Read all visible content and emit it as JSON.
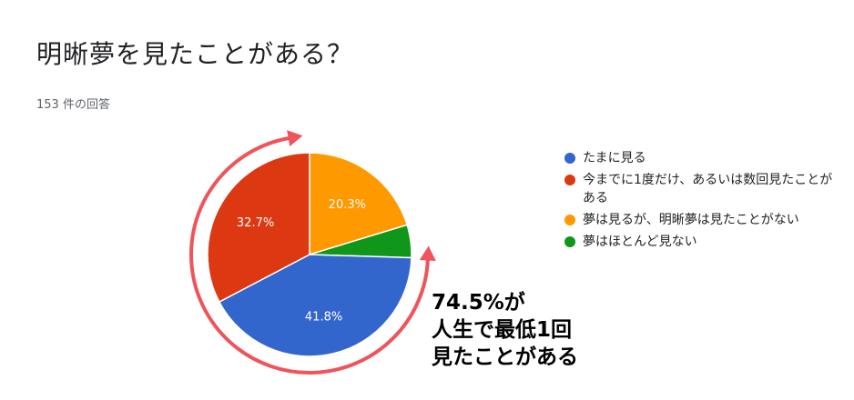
{
  "title": "明晰夢を見たことがある？",
  "response_count": "153 件の回答",
  "chart_data": {
    "type": "pie",
    "title": "明晰夢を見たことがある？",
    "slices": [
      {
        "label": "たまに見る",
        "value": 41.8,
        "display": "41.8%",
        "color": "#3366cc"
      },
      {
        "label": "今までに1度だけ、あるいは数回見たことがある",
        "value": 32.7,
        "display": "32.7%",
        "color": "#dc3912"
      },
      {
        "label": "夢は見るが、明晰夢は見たことがない",
        "value": 20.3,
        "display": "20.3%",
        "color": "#ff9900"
      },
      {
        "label": "夢はほとんど見ない",
        "value": 5.2,
        "display": "",
        "color": "#109618"
      }
    ],
    "legend_position": "right"
  },
  "annotation": {
    "lines": [
      "74.5%が",
      "人生で最低1回",
      "見たことがある"
    ],
    "arrow_color": "#f0535a"
  }
}
